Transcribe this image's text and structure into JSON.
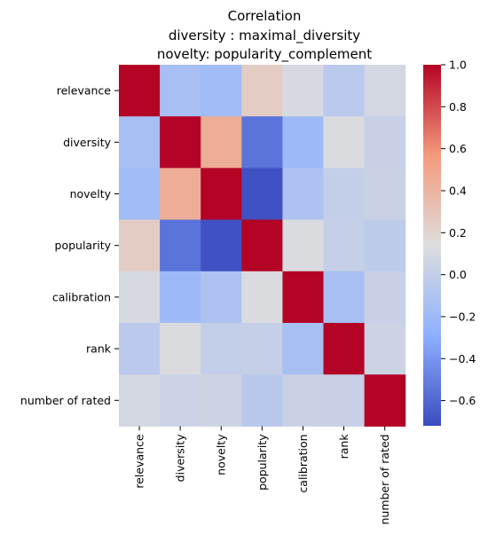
{
  "chart_data": {
    "type": "heatmap",
    "title_lines": [
      "Correlation",
      "diversity : maximal_diversity",
      "novelty: popularity_complement"
    ],
    "rows": [
      "relevance",
      "diversity",
      "novelty",
      "popularity",
      "calibration",
      "rank",
      "number of rated"
    ],
    "columns": [
      "relevance",
      "diversity",
      "novelty",
      "popularity",
      "calibration",
      "rank",
      "number of rated"
    ],
    "values": [
      [
        1.0,
        -0.15,
        -0.18,
        0.25,
        0.1,
        -0.05,
        0.08
      ],
      [
        -0.15,
        1.0,
        0.45,
        -0.55,
        -0.2,
        0.12,
        0.02
      ],
      [
        -0.18,
        0.45,
        1.0,
        -0.7,
        -0.12,
        0.0,
        0.03
      ],
      [
        0.25,
        -0.55,
        -0.7,
        1.0,
        0.12,
        0.01,
        -0.03
      ],
      [
        0.1,
        -0.2,
        -0.12,
        0.12,
        1.0,
        -0.15,
        0.02
      ],
      [
        -0.05,
        0.12,
        0.0,
        0.01,
        -0.15,
        1.0,
        0.05
      ],
      [
        0.08,
        0.04,
        0.05,
        -0.06,
        0.03,
        0.02,
        1.0
      ]
    ],
    "colormap": "coolwarm",
    "vmin": -0.72,
    "vmax": 1.0,
    "colorbar_ticks": [
      1.0,
      0.8,
      0.6,
      0.4,
      0.2,
      0.0,
      -0.2,
      -0.4,
      -0.6
    ],
    "colorbar_tick_labels": [
      "1.0",
      "0.8",
      "0.6",
      "0.4",
      "0.2",
      "0.0",
      "−0.2",
      "−0.4",
      "−0.6"
    ],
    "colors": {
      "low": "#3b4cc0",
      "mid": "#dddddd",
      "high": "#b40426"
    }
  }
}
